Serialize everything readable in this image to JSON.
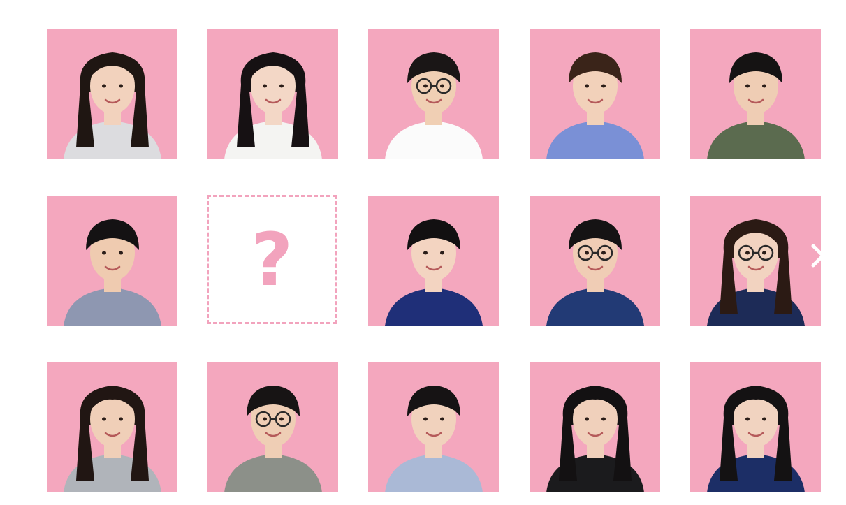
{
  "grid": {
    "mystery_tile": {
      "glyph": "?",
      "border_color": "#f2a3bd"
    },
    "next_arrow_icon": "chevron-right-icon",
    "tiles": [
      {
        "id": "p1",
        "hair": "#1f1612",
        "skin": "#f2d2bd",
        "shirt": "#dcdcdf",
        "glasses": false,
        "long": true
      },
      {
        "id": "p2",
        "hair": "#161113",
        "skin": "#f3d7c6",
        "shirt": "#f4f4f2",
        "glasses": false,
        "long": true
      },
      {
        "id": "p3",
        "hair": "#1a1616",
        "skin": "#f0cfb4",
        "shirt": "#fbfbfb",
        "glasses": true,
        "long": false
      },
      {
        "id": "p4",
        "hair": "#3a2419",
        "skin": "#f2d1ba",
        "shirt": "#7a90d6",
        "glasses": false,
        "long": false
      },
      {
        "id": "p5",
        "hair": "#151313",
        "skin": "#efcdb4",
        "shirt": "#5b6b4f",
        "glasses": false,
        "long": false
      },
      {
        "id": "p6",
        "hair": "#141213",
        "skin": "#efcbb0",
        "shirt": "#8e97b1",
        "glasses": false,
        "long": false
      },
      {
        "id": "p8",
        "hair": "#121011",
        "skin": "#f3d4c1",
        "shirt": "#1f2f78",
        "glasses": false,
        "long": false
      },
      {
        "id": "p9",
        "hair": "#151314",
        "skin": "#f0cdb5",
        "shirt": "#223a75",
        "glasses": true,
        "long": false
      },
      {
        "id": "p10",
        "hair": "#2b1a14",
        "skin": "#f2d3c0",
        "shirt": "#1d2b57",
        "glasses": true,
        "long": true
      },
      {
        "id": "p11",
        "hair": "#211613",
        "skin": "#f0cfb8",
        "shirt": "#b0b4ba",
        "glasses": false,
        "long": true
      },
      {
        "id": "p12",
        "hair": "#171414",
        "skin": "#efceb5",
        "shirt": "#8c9089",
        "glasses": true,
        "long": false
      },
      {
        "id": "p13",
        "hair": "#161314",
        "skin": "#f1d2bd",
        "shirt": "#aab9d6",
        "glasses": false,
        "long": false
      },
      {
        "id": "p14",
        "hair": "#131112",
        "skin": "#f0d0bb",
        "shirt": "#1b1b1d",
        "glasses": false,
        "long": true
      },
      {
        "id": "p15",
        "hair": "#141213",
        "skin": "#f1d3c0",
        "shirt": "#1c2e66",
        "glasses": false,
        "long": true
      }
    ],
    "tile_background": "#f4a7be"
  }
}
